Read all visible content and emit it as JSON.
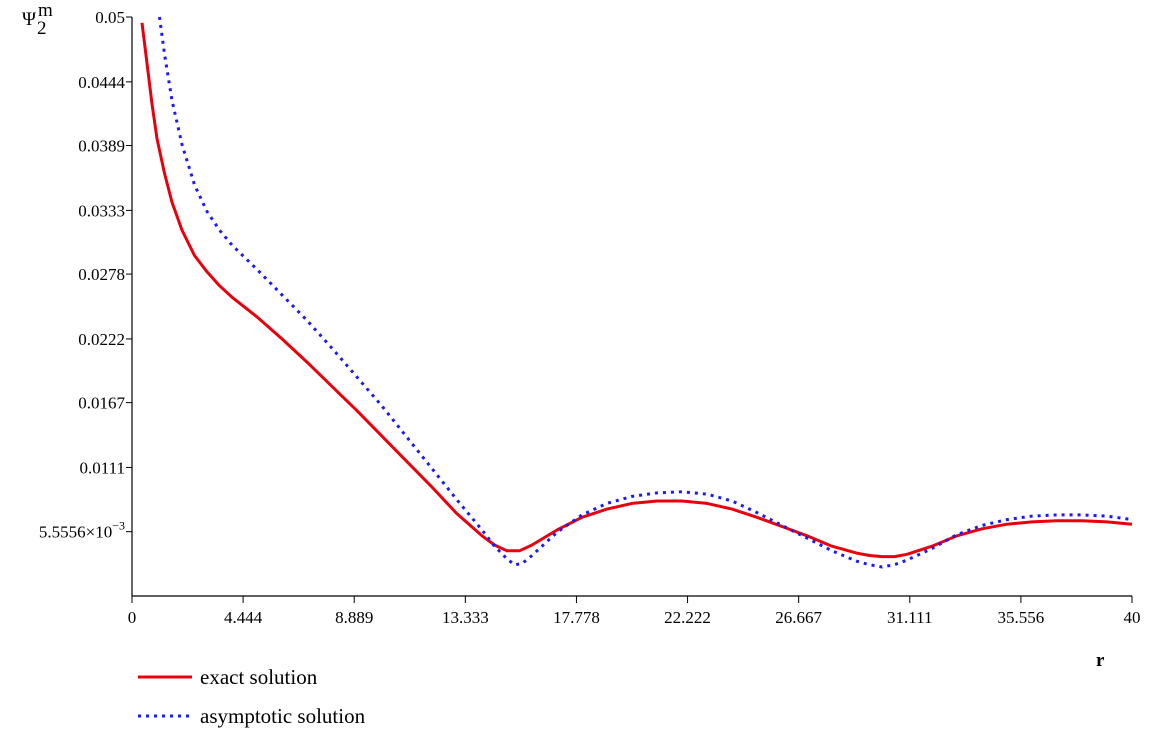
{
  "chart_data": {
    "type": "line",
    "title": "",
    "xlabel": "r",
    "ylabel": "Ψ2",
    "ylabel_sub": "2",
    "ylabel_sup": "m",
    "xlim": [
      0,
      40
    ],
    "ylim": [
      0,
      0.05
    ],
    "grid": false,
    "legend_position": "bottom-left",
    "x_ticks": [
      {
        "value": 0,
        "label": "0"
      },
      {
        "value": 4.444,
        "label": "4.444"
      },
      {
        "value": 8.889,
        "label": "8.889"
      },
      {
        "value": 13.333,
        "label": "13.333"
      },
      {
        "value": 17.778,
        "label": "17.778"
      },
      {
        "value": 22.222,
        "label": "22.222"
      },
      {
        "value": 26.667,
        "label": "26.667"
      },
      {
        "value": 31.111,
        "label": "31.111"
      },
      {
        "value": 35.556,
        "label": "35.556"
      },
      {
        "value": 40,
        "label": "40"
      }
    ],
    "y_ticks": [
      {
        "value": 0.0055556,
        "label": "5.5556×10",
        "exp": "−3"
      },
      {
        "value": 0.0111,
        "label": "0.0111"
      },
      {
        "value": 0.0167,
        "label": "0.0167"
      },
      {
        "value": 0.0222,
        "label": "0.0222"
      },
      {
        "value": 0.0278,
        "label": "0.0278"
      },
      {
        "value": 0.0333,
        "label": "0.0333"
      },
      {
        "value": 0.0389,
        "label": "0.0389"
      },
      {
        "value": 0.0444,
        "label": "0.0444"
      },
      {
        "value": 0.05,
        "label": "0.05"
      }
    ],
    "series": [
      {
        "name": "exact solution",
        "color": "#e8000d",
        "style": "solid",
        "x": [
          0.4,
          0.6,
          0.8,
          1.0,
          1.3,
          1.6,
          2.0,
          2.5,
          3.0,
          3.5,
          4.0,
          5.0,
          6.0,
          7.0,
          8.0,
          9.0,
          10.0,
          11.0,
          12.0,
          13.0,
          14.0,
          14.5,
          15.0,
          15.5,
          16.0,
          17.0,
          18.0,
          19.0,
          20.0,
          21.0,
          22.0,
          23.0,
          24.0,
          25.0,
          26.0,
          27.0,
          28.0,
          29.0,
          29.5,
          30.0,
          30.5,
          31.0,
          32.0,
          33.0,
          34.0,
          35.0,
          36.0,
          37.0,
          38.0,
          39.0,
          40.0
        ],
        "y": [
          0.0495,
          0.046,
          0.0425,
          0.0395,
          0.0365,
          0.034,
          0.0316,
          0.0294,
          0.028,
          0.0268,
          0.0258,
          0.0241,
          0.0222,
          0.0202,
          0.0181,
          0.016,
          0.0138,
          0.0116,
          0.0094,
          0.0071,
          0.0052,
          0.0044,
          0.0039,
          0.0039,
          0.0044,
          0.0057,
          0.0068,
          0.0075,
          0.008,
          0.0082,
          0.0082,
          0.008,
          0.0075,
          0.0068,
          0.006,
          0.0052,
          0.0043,
          0.0037,
          0.0035,
          0.0034,
          0.0034,
          0.0036,
          0.0043,
          0.0052,
          0.0058,
          0.0062,
          0.0064,
          0.0065,
          0.0065,
          0.0064,
          0.0062
        ]
      },
      {
        "name": "asymptotic solution",
        "color": "#1a1aff",
        "style": "dotted",
        "x": [
          1.1,
          1.3,
          1.6,
          2.0,
          2.5,
          3.0,
          3.5,
          4.0,
          5.0,
          6.0,
          7.0,
          8.0,
          9.0,
          10.0,
          11.0,
          12.0,
          13.0,
          14.0,
          14.5,
          15.0,
          15.3,
          15.6,
          16.0,
          17.0,
          18.0,
          19.0,
          20.0,
          21.0,
          22.0,
          23.0,
          24.0,
          25.0,
          26.0,
          27.0,
          28.0,
          29.0,
          29.5,
          30.0,
          30.5,
          31.0,
          32.0,
          33.0,
          34.0,
          35.0,
          36.0,
          37.0,
          38.0,
          39.0,
          40.0
        ],
        "y": [
          0.05,
          0.0468,
          0.0428,
          0.039,
          0.0355,
          0.0332,
          0.0316,
          0.0303,
          0.0282,
          0.026,
          0.0238,
          0.0214,
          0.0189,
          0.0164,
          0.0137,
          0.011,
          0.0083,
          0.0057,
          0.0043,
          0.0032,
          0.0027,
          0.0028,
          0.0035,
          0.0055,
          0.007,
          0.008,
          0.0086,
          0.0089,
          0.009,
          0.0088,
          0.0082,
          0.0072,
          0.0061,
          0.005,
          0.0039,
          0.003,
          0.0027,
          0.0025,
          0.0027,
          0.0031,
          0.0041,
          0.0053,
          0.0061,
          0.0066,
          0.0069,
          0.007,
          0.007,
          0.0069,
          0.0066
        ]
      }
    ]
  }
}
